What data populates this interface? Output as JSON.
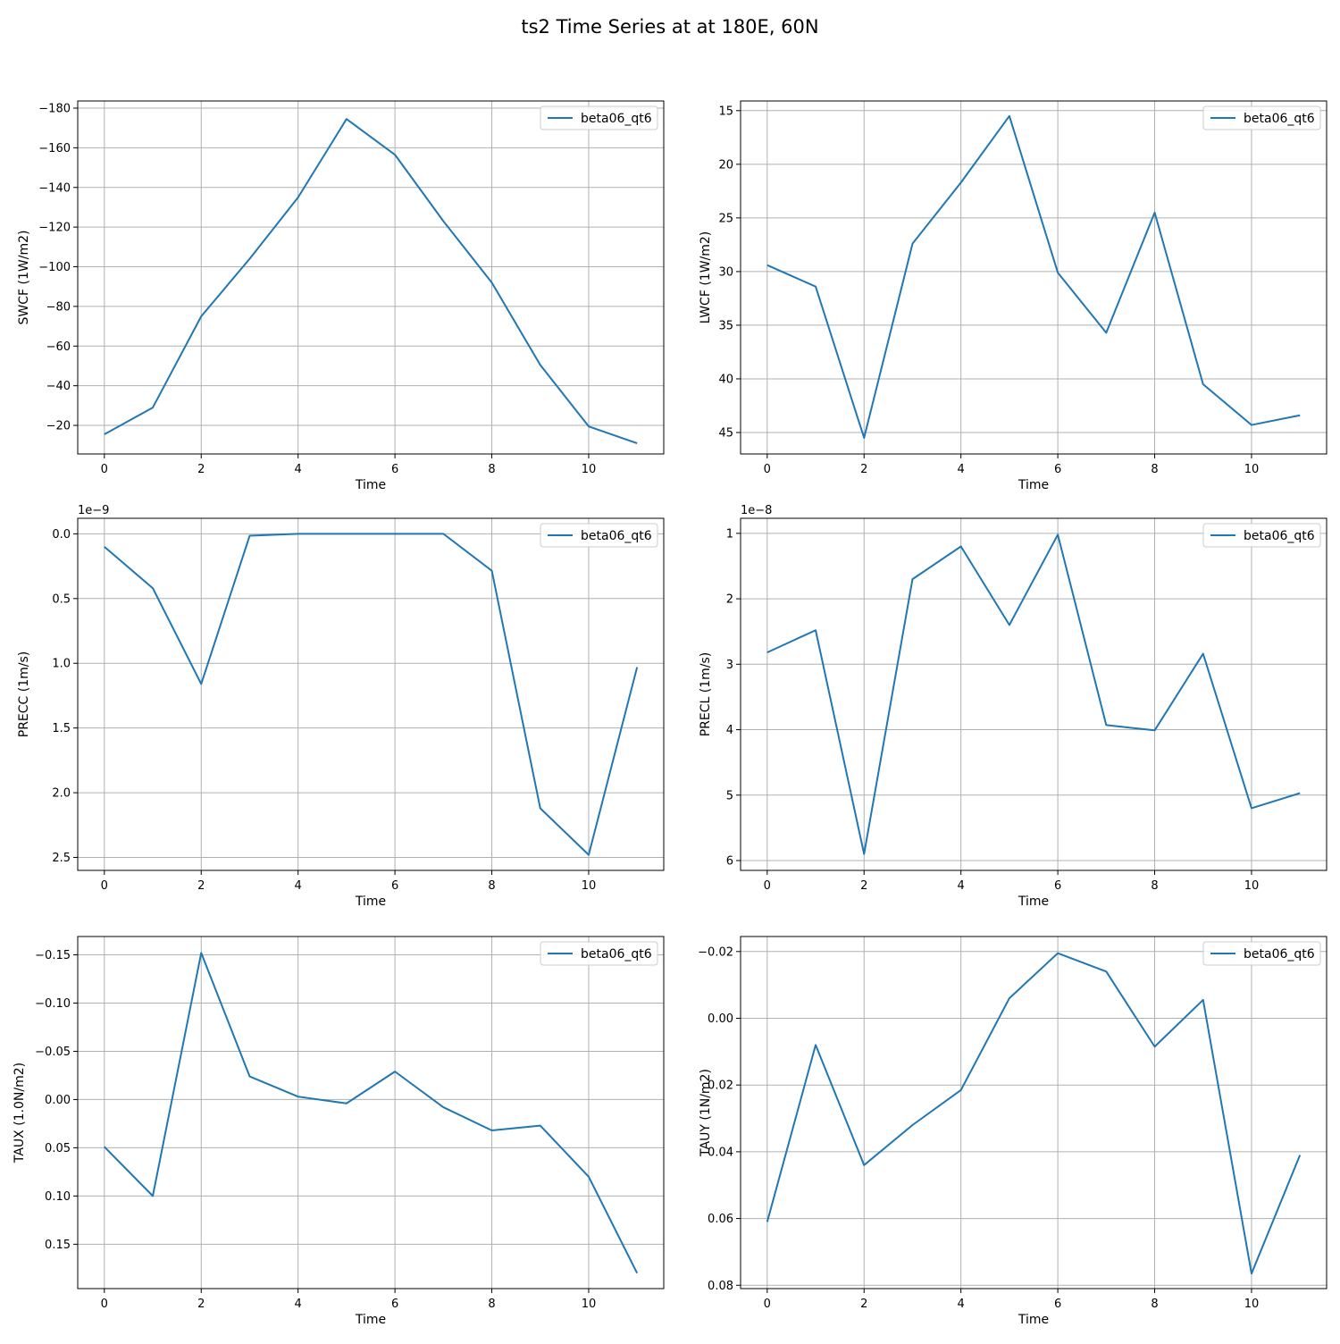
{
  "figure": {
    "title": "ts2 Time Series at at 180E, 60N",
    "colors": {
      "line": "#1f77b4",
      "grid": "#b0b0b0",
      "axes": "#000000",
      "background": "#ffffff"
    }
  },
  "chart_data": [
    {
      "type": "line",
      "xlabel": "Time",
      "ylabel": "SWCF (1W/m2)",
      "x": [
        0,
        1,
        2,
        3,
        4,
        5,
        6,
        7,
        8,
        9,
        10,
        11
      ],
      "series": [
        {
          "name": "beta06_qt6",
          "values": [
            -15.5,
            -29,
            -75,
            -104,
            -135,
            -174.5,
            -156.5,
            -123,
            -92,
            -50.5,
            -19.5,
            -11
          ]
        }
      ],
      "xlim": [
        -0.55,
        11.55
      ],
      "ylim": [
        -5.6,
        -183.6
      ],
      "y_inverted": true,
      "xticks": [
        0,
        2,
        4,
        6,
        8,
        10
      ],
      "xtick_labels": [
        "0",
        "2",
        "4",
        "6",
        "8",
        "10"
      ],
      "yticks": [
        -20,
        -40,
        -60,
        -80,
        -100,
        -120,
        -140,
        -160,
        -180
      ],
      "ytick_labels": [
        "−20",
        "−40",
        "−60",
        "−80",
        "−100",
        "−120",
        "−140",
        "−160",
        "−180"
      ],
      "grid": true,
      "legend": "top-right"
    },
    {
      "type": "line",
      "xlabel": "Time",
      "ylabel": "LWCF (1W/m2)",
      "x": [
        0,
        1,
        2,
        3,
        4,
        5,
        6,
        7,
        8,
        9,
        10,
        11
      ],
      "series": [
        {
          "name": "beta06_qt6",
          "values": [
            29.4,
            31.4,
            45.5,
            27.4,
            21.7,
            15.5,
            30.1,
            35.7,
            24.5,
            40.5,
            44.3,
            43.4
          ]
        }
      ],
      "xlim": [
        -0.55,
        11.55
      ],
      "ylim": [
        47.0,
        14.1
      ],
      "y_inverted": true,
      "xticks": [
        0,
        2,
        4,
        6,
        8,
        10
      ],
      "xtick_labels": [
        "0",
        "2",
        "4",
        "6",
        "8",
        "10"
      ],
      "yticks": [
        15,
        20,
        25,
        30,
        35,
        40,
        45
      ],
      "ytick_labels": [
        "15",
        "20",
        "25",
        "30",
        "35",
        "40",
        "45"
      ],
      "grid": true,
      "legend": "top-right"
    },
    {
      "type": "line",
      "xlabel": "Time",
      "ylabel": "PRECC (1m/s)",
      "offset_label": "1e−9",
      "x": [
        0,
        1,
        2,
        3,
        4,
        5,
        6,
        7,
        8,
        9,
        10,
        11
      ],
      "series": [
        {
          "name": "beta06_qt6",
          "values": [
            0.1,
            0.42,
            1.16,
            0.015,
            0.0,
            0.0,
            0.0,
            0.0,
            0.285,
            2.12,
            2.48,
            1.03
          ]
        }
      ],
      "xlim": [
        -0.55,
        11.55
      ],
      "ylim": [
        2.6,
        -0.12
      ],
      "y_inverted": true,
      "xticks": [
        0,
        2,
        4,
        6,
        8,
        10
      ],
      "xtick_labels": [
        "0",
        "2",
        "4",
        "6",
        "8",
        "10"
      ],
      "yticks": [
        0.0,
        0.5,
        1.0,
        1.5,
        2.0,
        2.5
      ],
      "ytick_labels": [
        "0.0",
        "0.5",
        "1.0",
        "1.5",
        "2.0",
        "2.5"
      ],
      "grid": true,
      "legend": "top-right"
    },
    {
      "type": "line",
      "xlabel": "Time",
      "ylabel": "PRECL (1m/s)",
      "offset_label": "1e−8",
      "x": [
        0,
        1,
        2,
        3,
        4,
        5,
        6,
        7,
        8,
        9,
        10,
        11
      ],
      "series": [
        {
          "name": "beta06_qt6",
          "values": [
            2.82,
            2.48,
            5.9,
            1.7,
            1.2,
            2.4,
            1.02,
            3.93,
            4.01,
            2.84,
            5.2,
            4.97
          ]
        }
      ],
      "xlim": [
        -0.55,
        11.55
      ],
      "ylim": [
        6.15,
        0.77
      ],
      "y_inverted": true,
      "xticks": [
        0,
        2,
        4,
        6,
        8,
        10
      ],
      "xtick_labels": [
        "0",
        "2",
        "4",
        "6",
        "8",
        "10"
      ],
      "yticks": [
        1,
        2,
        3,
        4,
        5,
        6
      ],
      "ytick_labels": [
        "1",
        "2",
        "3",
        "4",
        "5",
        "6"
      ],
      "grid": true,
      "legend": "top-right"
    },
    {
      "type": "line",
      "xlabel": "Time",
      "ylabel": "TAUX (1.0N/m2)",
      "x": [
        0,
        1,
        2,
        3,
        4,
        5,
        6,
        7,
        8,
        9,
        10,
        11
      ],
      "series": [
        {
          "name": "beta06_qt6",
          "values": [
            0.049,
            0.1,
            -0.152,
            -0.024,
            -0.003,
            0.004,
            -0.029,
            0.008,
            0.032,
            0.027,
            0.08,
            0.18
          ]
        }
      ],
      "xlim": [
        -0.55,
        11.55
      ],
      "ylim": [
        0.196,
        -0.169
      ],
      "y_inverted": true,
      "xticks": [
        0,
        2,
        4,
        6,
        8,
        10
      ],
      "xtick_labels": [
        "0",
        "2",
        "4",
        "6",
        "8",
        "10"
      ],
      "yticks": [
        -0.15,
        -0.1,
        -0.05,
        0.0,
        0.05,
        0.1,
        0.15
      ],
      "ytick_labels": [
        "−0.15",
        "−0.10",
        "−0.05",
        "0.00",
        "0.05",
        "0.10",
        "0.15"
      ],
      "grid": true,
      "legend": "top-right"
    },
    {
      "type": "line",
      "xlabel": "Time",
      "ylabel": "TAUY (1N/m2)",
      "x": [
        0,
        1,
        2,
        3,
        4,
        5,
        6,
        7,
        8,
        9,
        10,
        11
      ],
      "series": [
        {
          "name": "beta06_qt6",
          "values": [
            0.061,
            0.008,
            0.044,
            0.032,
            0.0215,
            -0.006,
            -0.0195,
            -0.014,
            0.0085,
            -0.0055,
            0.0765,
            0.041
          ]
        }
      ],
      "xlim": [
        -0.55,
        11.55
      ],
      "ylim": [
        0.081,
        -0.0245
      ],
      "y_inverted": true,
      "xticks": [
        0,
        2,
        4,
        6,
        8,
        10
      ],
      "xtick_labels": [
        "0",
        "2",
        "4",
        "6",
        "8",
        "10"
      ],
      "yticks": [
        -0.02,
        0.0,
        0.02,
        0.04,
        0.06,
        0.08
      ],
      "ytick_labels": [
        "−0.02",
        "0.00",
        "0.02",
        "0.04",
        "0.06",
        "0.08"
      ],
      "grid": true,
      "legend": "top-right"
    }
  ]
}
